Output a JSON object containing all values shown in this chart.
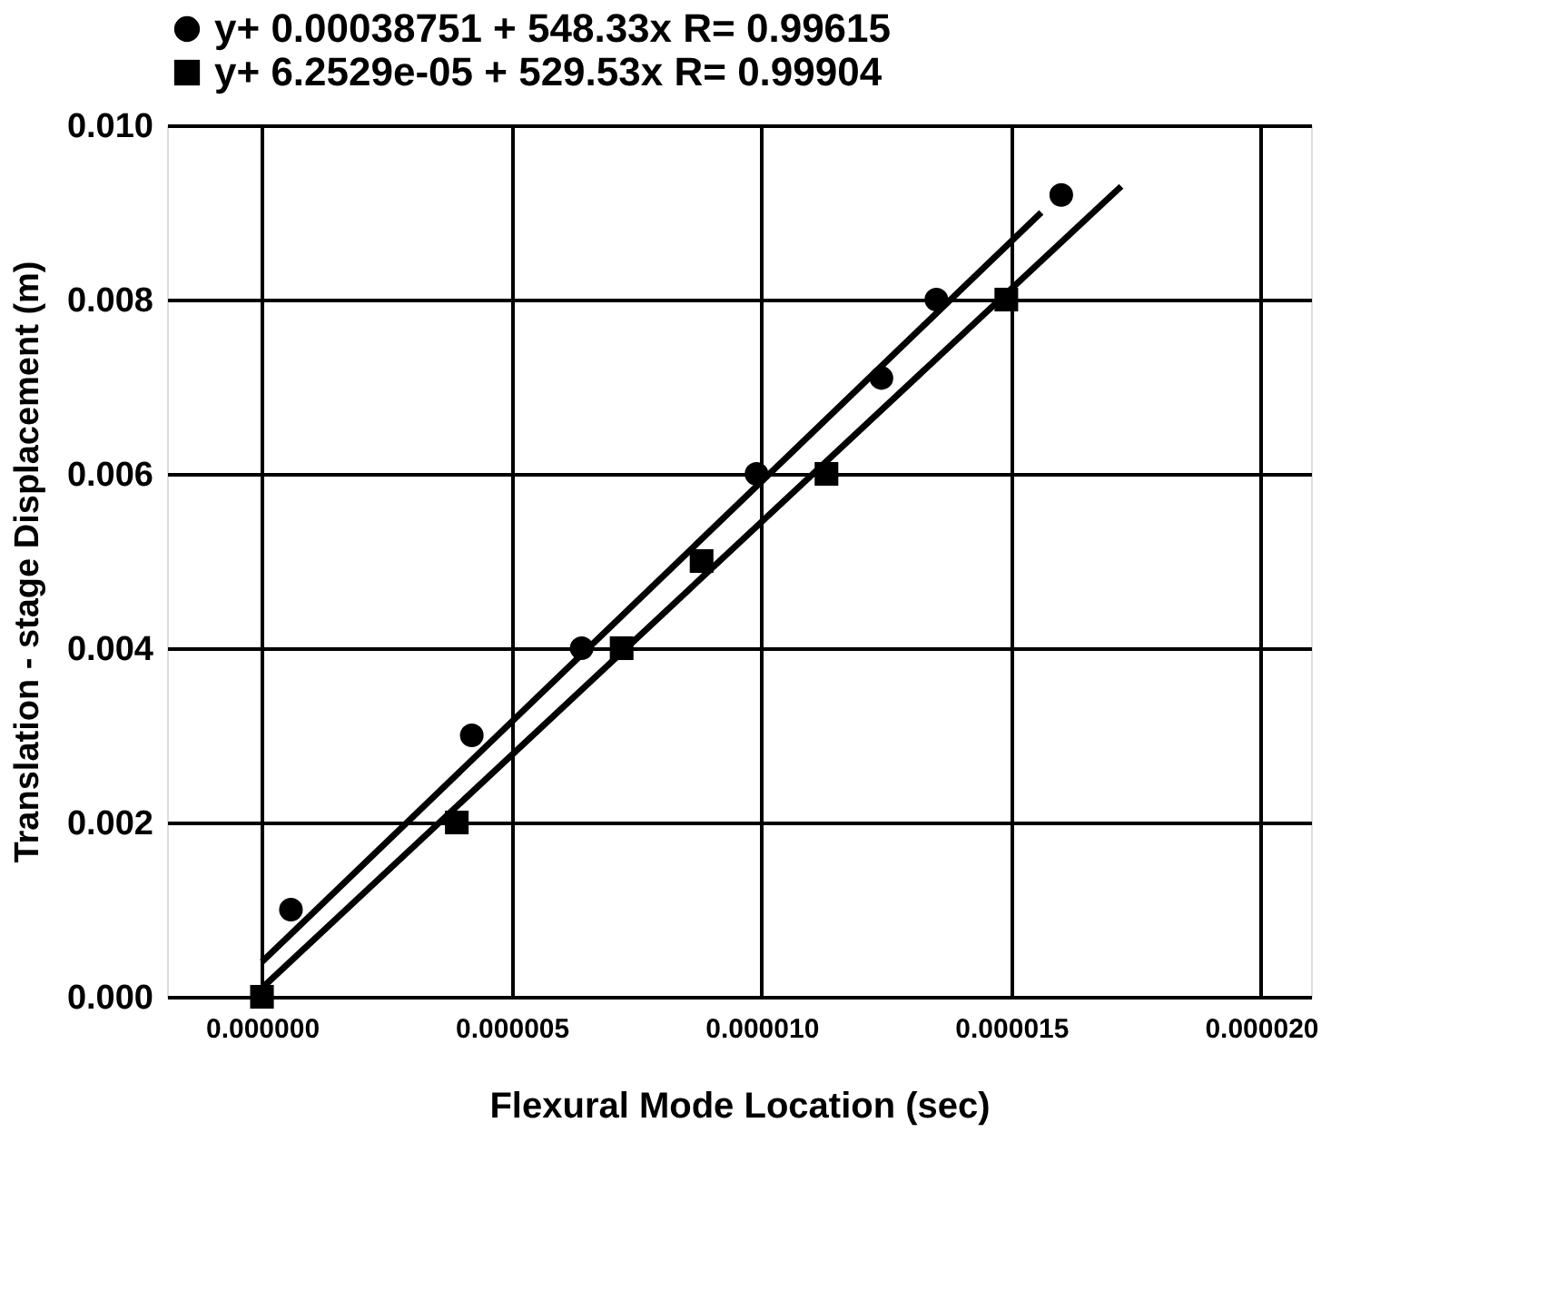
{
  "chart_data": {
    "type": "scatter",
    "xlabel": "Flexural Mode Location (sec)",
    "ylabel": "Translation - stage Displacement (m)",
    "xlim": [
      -1.9e-06,
      2.1e-05
    ],
    "ylim": [
      0,
      0.01
    ],
    "xticks": [
      {
        "value": 0,
        "label": "0.000000"
      },
      {
        "value": 5e-06,
        "label": "0.000005"
      },
      {
        "value": 1e-05,
        "label": "0.000010"
      },
      {
        "value": 1.5e-05,
        "label": "0.000015"
      },
      {
        "value": 2e-05,
        "label": "0.000020"
      }
    ],
    "yticks": [
      {
        "value": 0,
        "label": "0.000"
      },
      {
        "value": 0.002,
        "label": "0.002"
      },
      {
        "value": 0.004,
        "label": "0.004"
      },
      {
        "value": 0.006,
        "label": "0.006"
      },
      {
        "value": 0.008,
        "label": "0.008"
      },
      {
        "value": 0.01,
        "label": "0.010"
      }
    ],
    "grid": true,
    "legend": "top",
    "series": [
      {
        "name": "y+ 0.00038751 + 548.33x  R= 0.99615",
        "marker": "circle",
        "color": "#000000",
        "x": [
          5.8e-07,
          4.2e-06,
          6.4e-06,
          9.9e-06,
          1.24e-05,
          1.35e-05,
          1.6e-05
        ],
        "values": [
          0.001,
          0.003,
          0.004,
          0.006,
          0.0071,
          0.008,
          0.0092
        ]
      },
      {
        "name": "y+ 6.2529e-05 + 529.53x  R= 0.99904",
        "marker": "square",
        "color": "#000000",
        "x": [
          0,
          3.9e-06,
          7.2e-06,
          8.8e-06,
          1.13e-05,
          1.49e-05
        ],
        "values": [
          0,
          0.002,
          0.004,
          0.005,
          0.006,
          0.008
        ]
      },
      {
        "type": "line",
        "color": "#000000",
        "x": [
          0,
          1.56e-05
        ],
        "values": [
          0.0004,
          0.009
        ],
        "line_style": "solid"
      },
      {
        "type": "line",
        "color": "#000000",
        "x": [
          0,
          1.72e-05
        ],
        "values": [
          0.0001,
          0.0093
        ],
        "line_style": "solid"
      }
    ]
  }
}
